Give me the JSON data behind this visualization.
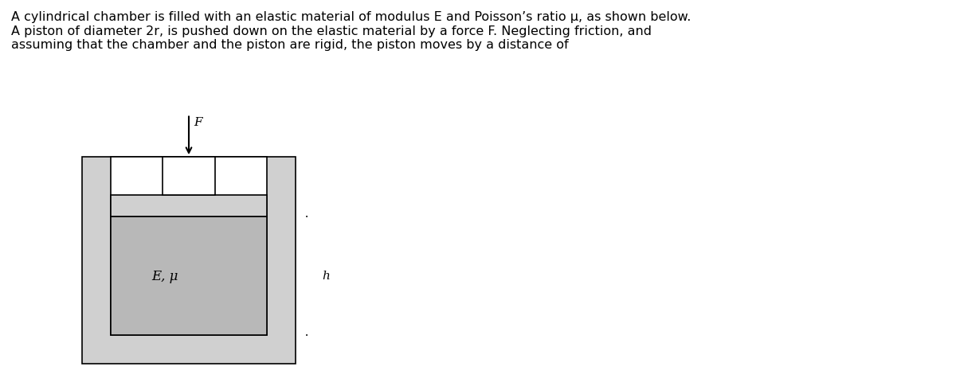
{
  "fig_width": 12.0,
  "fig_height": 4.81,
  "dpi": 100,
  "bg_color": "#ffffff",
  "text_color": "#000000",
  "paragraph": "A cylindrical chamber is filled with an elastic material of modulus E and Poisson’s ratio μ, as shown below.\nA piston of diameter 2r, is pushed down on the elastic material by a force F. Neglecting friction, and\nassuming that the chamber and the piston are rigid, the piston moves by a distance of",
  "text_fontsize": 11.5,
  "chamber_color": "#d0d0d0",
  "material_color": "#b8b8b8",
  "piston_color": "#ffffff",
  "outline_color": "#000000",
  "lw": 1.2,
  "label_Eu": "E, μ",
  "label_h": "h",
  "label_F": "F",
  "label_fontsize": 10
}
